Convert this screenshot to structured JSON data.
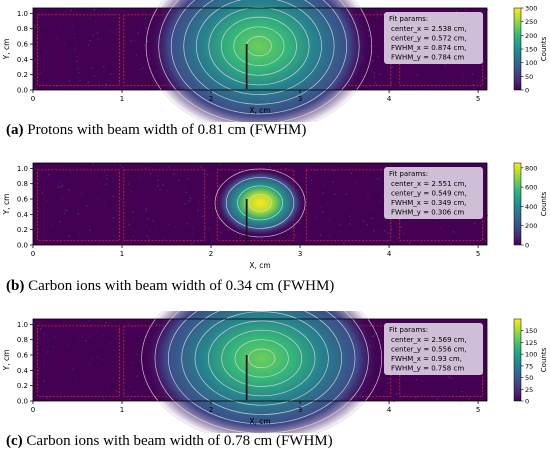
{
  "panels": [
    {
      "caption": {
        "tag": "(a)",
        "text": "Protons with beam width of 0.81 cm (FWHM)"
      },
      "chart_data": {
        "type": "heatmap",
        "xlabel": "X, cm",
        "ylabel": "Y, cm",
        "xlim": [
          0,
          5.1
        ],
        "ylim": [
          0,
          1.07
        ],
        "xticks": [
          "0",
          "1",
          "2",
          "3",
          "4",
          "5"
        ],
        "yticks": [
          "0.0",
          "0.2",
          "0.4",
          "0.6",
          "0.8",
          "1.0"
        ],
        "colorbar": {
          "label": "Counts",
          "min": 0,
          "max": 300,
          "ticks": [
            "0",
            "50",
            "100",
            "150",
            "200",
            "250",
            "300"
          ]
        },
        "fit": {
          "title": "Fit params:",
          "lines": [
            "center_x = 2.538 cm,",
            "center_y = 0.572 cm,",
            "FWHM_x = 0.874 cm,",
            "FWHM_y = 0.784 cm"
          ]
        },
        "center_x": 2.538,
        "center_y": 0.572,
        "fwhm_x": 0.874,
        "fwhm_y": 0.784
      }
    },
    {
      "caption": {
        "tag": "(b)",
        "text": "Carbon ions with beam width of 0.34 cm (FWHM)"
      },
      "chart_data": {
        "type": "heatmap",
        "xlabel": "X, cm",
        "ylabel": "Y, cm",
        "xlim": [
          0,
          5.1
        ],
        "ylim": [
          0,
          1.07
        ],
        "xticks": [
          "0",
          "1",
          "2",
          "3",
          "4",
          "5"
        ],
        "yticks": [
          "0.0",
          "0.2",
          "0.4",
          "0.6",
          "0.8",
          "1.0"
        ],
        "colorbar": {
          "label": "Counts",
          "min": 0,
          "max": 850,
          "ticks": [
            "0",
            "200",
            "400",
            "600",
            "800"
          ]
        },
        "fit": {
          "title": "Fit params:",
          "lines": [
            "center_x = 2.551 cm,",
            "center_y = 0.549 cm,",
            "FWHM_x = 0.349 cm,",
            "FWHM_y = 0.306 cm"
          ]
        },
        "center_x": 2.551,
        "center_y": 0.549,
        "fwhm_x": 0.349,
        "fwhm_y": 0.306
      }
    },
    {
      "caption": {
        "tag": "(c)",
        "text": "Carbon ions with beam width of 0.78 cm (FWHM)"
      },
      "chart_data": {
        "type": "heatmap",
        "xlabel": "X, cm",
        "ylabel": "Y, cm",
        "xlim": [
          0,
          5.1
        ],
        "ylim": [
          0,
          1.07
        ],
        "xticks": [
          "0",
          "1",
          "2",
          "3",
          "4",
          "5"
        ],
        "yticks": [
          "0.0",
          "0.2",
          "0.4",
          "0.6",
          "0.8",
          "1.0"
        ],
        "colorbar": {
          "label": "Counts",
          "min": 0,
          "max": 175,
          "ticks": [
            "0",
            "25",
            "50",
            "75",
            "100",
            "125",
            "150"
          ]
        },
        "fit": {
          "title": "Fit params:",
          "lines": [
            "center_x = 2.569 cm,",
            "center_y = 0.556 cm,",
            "FWHM_x = 0.93 cm,",
            "FWHM_y = 0.758 cm"
          ]
        },
        "center_x": 2.569,
        "center_y": 0.556,
        "fwhm_x": 0.93,
        "fwhm_y": 0.758
      }
    }
  ],
  "colors": {
    "background": "#440154",
    "border": "#d62728",
    "contour": "#d9d9d9",
    "fitbox": "#d8cce0"
  }
}
